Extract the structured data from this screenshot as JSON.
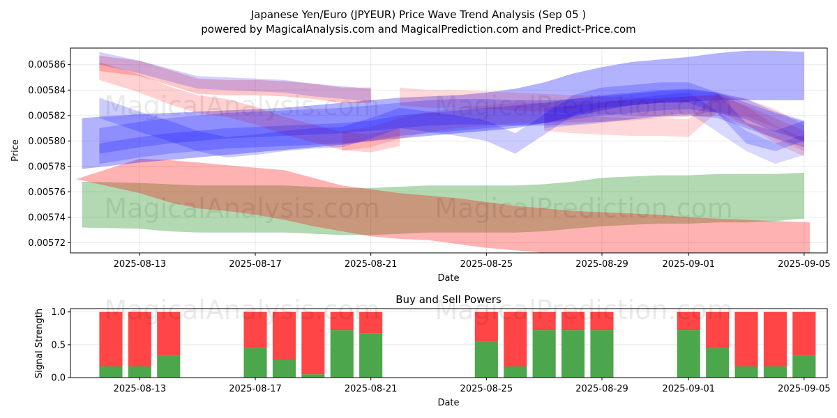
{
  "title_line1": "Japanese Yen/Euro (JPYEUR) Price Wave Trend Analysis (Sep 05 )",
  "title_line2": "powered by MagicalAnalysis.com and MagicalPrediction.com and Predict-Price.com",
  "watermarks": [
    "MagicalAnalysis.com",
    "MagicalPrediction.com"
  ],
  "colors": {
    "red": "#ff0000",
    "green": "#008000",
    "blue": "#0000ff",
    "brown": "#8b6a3a",
    "buy": "#4ca64c",
    "sell": "#ff4545"
  },
  "chart_data": [
    {
      "type": "area",
      "title": "",
      "xlabel": "Date",
      "ylabel": "Price",
      "xlim": [
        -0.4,
        25.8
      ],
      "ylim": [
        0.005712,
        0.005873
      ],
      "x_ticks": [
        {
          "day": 2,
          "label": "2025-08-13"
        },
        {
          "day": 6,
          "label": "2025-08-17"
        },
        {
          "day": 10,
          "label": "2025-08-21"
        },
        {
          "day": 14,
          "label": "2025-08-25"
        },
        {
          "day": 18,
          "label": "2025-08-29"
        },
        {
          "day": 21,
          "label": "2025-09-01"
        },
        {
          "day": 25,
          "label": "2025-09-05"
        }
      ],
      "y_ticks": [
        {
          "value": 0.00572,
          "label": "0.00572"
        },
        {
          "value": 0.00574,
          "label": "0.00574"
        },
        {
          "value": 0.00576,
          "label": "0.00576"
        },
        {
          "value": 0.00578,
          "label": "0.00578"
        },
        {
          "value": 0.0058,
          "label": "0.00580"
        },
        {
          "value": 0.00582,
          "label": "0.00582"
        },
        {
          "value": 0.00584,
          "label": "0.00584"
        },
        {
          "value": 0.00586,
          "label": "0.00586"
        }
      ],
      "bands": [
        {
          "name": "green-forecast",
          "color": "green",
          "opacity": 0.3,
          "x": [
            0,
            2,
            3,
            4,
            5,
            6,
            7,
            8,
            9,
            10,
            11,
            12,
            13,
            14,
            15,
            16,
            17,
            18,
            19,
            20,
            21,
            22,
            23,
            24,
            25
          ],
          "upper": [
            0.005768,
            0.005767,
            0.005766,
            0.005765,
            0.005765,
            0.005765,
            0.005765,
            0.005764,
            0.005763,
            0.005763,
            0.005764,
            0.005765,
            0.005765,
            0.005765,
            0.005765,
            0.005766,
            0.005768,
            0.005771,
            0.005772,
            0.005773,
            0.005773,
            0.005774,
            0.005774,
            0.005774,
            0.005775
          ],
          "lower": [
            0.005732,
            0.005731,
            0.005729,
            0.005728,
            0.005728,
            0.005728,
            0.005728,
            0.005727,
            0.005726,
            0.005726,
            0.005727,
            0.005728,
            0.005728,
            0.005728,
            0.005728,
            0.005729,
            0.005731,
            0.005733,
            0.005734,
            0.005735,
            0.005735,
            0.005736,
            0.005736,
            0.005737,
            0.005739
          ]
        },
        {
          "name": "red-forecast",
          "color": "red",
          "opacity": 0.3,
          "x": [
            -0.2,
            2,
            3,
            4,
            5,
            6,
            7,
            8,
            9,
            10,
            11,
            12,
            13,
            14,
            15,
            16,
            17,
            18,
            19,
            20,
            21,
            22,
            23,
            24,
            25.2
          ],
          "upper": [
            0.00577,
            0.005786,
            0.005785,
            0.005783,
            0.005781,
            0.005779,
            0.005777,
            0.005771,
            0.005765,
            0.005762,
            0.005759,
            0.005757,
            0.005755,
            0.005752,
            0.005749,
            0.005747,
            0.005745,
            0.005744,
            0.005743,
            0.005742,
            0.00574,
            0.005739,
            0.005738,
            0.005737,
            0.005736
          ],
          "lower": [
            0.00577,
            0.005759,
            0.005752,
            0.005747,
            0.005745,
            0.005742,
            0.005738,
            0.005733,
            0.005729,
            0.005725,
            0.005723,
            0.005722,
            0.005719,
            0.005716,
            0.005714,
            0.005712,
            0.005712,
            0.005712,
            0.005712,
            0.005712,
            0.005712,
            0.005712,
            0.005712,
            0.005712,
            0.005712
          ]
        },
        {
          "name": "blue-forecast",
          "color": "blue",
          "opacity": 0.3,
          "x": [
            0,
            2,
            3,
            4,
            5,
            6,
            7,
            8,
            9,
            10,
            11,
            12,
            13,
            14,
            15,
            16,
            17,
            18,
            19,
            20,
            21,
            22,
            23,
            24,
            25
          ],
          "upper": [
            0.005818,
            0.005821,
            0.005822,
            0.005823,
            0.005824,
            0.005825,
            0.005826,
            0.005828,
            0.00583,
            0.005832,
            0.005834,
            0.005835,
            0.005836,
            0.005838,
            0.005841,
            0.005846,
            0.005853,
            0.005858,
            0.005862,
            0.005864,
            0.005866,
            0.005869,
            0.005871,
            0.005871,
            0.00587
          ],
          "lower": [
            0.005778,
            0.005783,
            0.005785,
            0.005787,
            0.005789,
            0.005791,
            0.005793,
            0.005795,
            0.005797,
            0.0058,
            0.005802,
            0.005804,
            0.005806,
            0.005808,
            0.00581,
            0.005814,
            0.005819,
            0.005824,
            0.005828,
            0.00583,
            0.005831,
            0.005832,
            0.005832,
            0.005832,
            0.005832
          ]
        }
      ],
      "waves": [
        {
          "color": "red",
          "opacity": 0.22,
          "x": [
            0.6,
            2,
            3,
            4,
            5,
            6,
            7,
            8,
            9,
            10
          ],
          "center": [
            0.005861,
            0.005857,
            0.00585,
            0.005843,
            0.005842,
            0.005842,
            0.005841,
            0.005839,
            0.005836,
            0.005836
          ],
          "half": 6e-06
        },
        {
          "color": "red",
          "opacity": 0.18,
          "x": [
            0.6,
            2,
            3,
            4,
            5,
            6,
            7,
            8,
            9,
            10,
            11
          ],
          "center": [
            0.005855,
            0.005845,
            0.005836,
            0.005829,
            0.005826,
            0.00582,
            0.005812,
            0.005806,
            0.0058,
            0.005798,
            0.005803
          ],
          "half": 7e-06
        },
        {
          "color": "red",
          "opacity": 0.15,
          "x": [
            9,
            10,
            11,
            12,
            13,
            14,
            15,
            16,
            17,
            18,
            19,
            20,
            21,
            22,
            23,
            24,
            25
          ],
          "center": [
            0.0058,
            0.005803,
            0.00581,
            0.005815,
            0.005818,
            0.00582,
            0.005822,
            0.005822,
            0.005823,
            0.005823,
            0.005824,
            0.005826,
            0.005827,
            0.005828,
            0.00582,
            0.00581,
            0.0058
          ],
          "half": 8e-06
        },
        {
          "color": "red",
          "opacity": 0.15,
          "x": [
            11,
            12,
            13,
            14,
            15,
            16,
            17,
            18,
            19,
            20,
            21,
            22,
            23,
            24,
            25
          ],
          "center": [
            0.005835,
            0.005833,
            0.005833,
            0.005832,
            0.005831,
            0.00583,
            0.005829,
            0.005828,
            0.005827,
            0.005826,
            0.005828,
            0.00583,
            0.005826,
            0.005818,
            0.005805
          ],
          "half": 7e-06
        },
        {
          "color": "red",
          "opacity": 0.15,
          "x": [
            16,
            17,
            18,
            19,
            20,
            21,
            22,
            23,
            24,
            25
          ],
          "center": [
            0.005815,
            0.005813,
            0.005812,
            0.005811,
            0.005811,
            0.00581,
            0.00583,
            0.00582,
            0.005805,
            0.005795
          ],
          "half": 7e-06
        },
        {
          "color": "blue",
          "opacity": 0.18,
          "x": [
            0.6,
            2,
            3,
            4,
            5,
            6,
            7,
            8,
            9,
            10
          ],
          "center": [
            0.005865,
            0.005858,
            0.005852,
            0.005846,
            0.005845,
            0.005844,
            0.005843,
            0.00584,
            0.005838,
            0.005836
          ],
          "half": 5e-06
        },
        {
          "color": "blue",
          "opacity": 0.2,
          "x": [
            0.6,
            2,
            3,
            4,
            5,
            6,
            7,
            8,
            9,
            10,
            11,
            12,
            13,
            14,
            15,
            16,
            17,
            18,
            19,
            20,
            21,
            22,
            23,
            24,
            25
          ],
          "center": [
            0.0058,
            0.005805,
            0.005808,
            0.00581,
            0.005812,
            0.005813,
            0.005814,
            0.005815,
            0.005816,
            0.005818,
            0.00582,
            0.005822,
            0.005823,
            0.005823,
            0.005822,
            0.005822,
            0.005823,
            0.005825,
            0.005827,
            0.005829,
            0.00583,
            0.005828,
            0.00582,
            0.005812,
            0.005805
          ],
          "half": 1e-05
        },
        {
          "color": "blue",
          "opacity": 0.2,
          "x": [
            0.6,
            2,
            3,
            4,
            5,
            6,
            7,
            8,
            9,
            10,
            11,
            12,
            13,
            14,
            15,
            16,
            17,
            18,
            19,
            20,
            21,
            22,
            23,
            24,
            25
          ],
          "center": [
            0.005826,
            0.005815,
            0.005808,
            0.0058,
            0.005795,
            0.005797,
            0.0058,
            0.005802,
            0.005803,
            0.00581,
            0.005818,
            0.005815,
            0.005812,
            0.005808,
            0.005798,
            0.005813,
            0.005828,
            0.005834,
            0.005836,
            0.005838,
            0.005838,
            0.00583,
            0.005806,
            0.0058,
            0.005808
          ],
          "half": 8e-06
        },
        {
          "color": "blue",
          "opacity": 0.2,
          "x": [
            0.6,
            2,
            3,
            4,
            5,
            6,
            7,
            8,
            9,
            10,
            11,
            12,
            13,
            14,
            15,
            16,
            17,
            18,
            19,
            20,
            21,
            22,
            23,
            24,
            25
          ],
          "center": [
            0.00579,
            0.005795,
            0.005798,
            0.0058,
            0.005802,
            0.005803,
            0.005804,
            0.005805,
            0.005806,
            0.005808,
            0.005812,
            0.005814,
            0.005816,
            0.005818,
            0.00582,
            0.005822,
            0.005825,
            0.005828,
            0.00583,
            0.005832,
            0.005833,
            0.00583,
            0.005825,
            0.005815,
            0.005808
          ],
          "half": 8e-06
        },
        {
          "color": "blue",
          "opacity": 0.15,
          "x": [
            16,
            17,
            18,
            19,
            20,
            21,
            22,
            23,
            24,
            25
          ],
          "center": [
            0.005818,
            0.00582,
            0.005822,
            0.005825,
            0.005828,
            0.00583,
            0.005815,
            0.0058,
            0.00579,
            0.005797
          ],
          "half": 8e-06
        }
      ]
    },
    {
      "type": "bar",
      "title": "Buy and Sell Powers",
      "xlabel": "Date",
      "ylabel": "Signal Strength",
      "xlim": [
        -0.4,
        25.8
      ],
      "ylim": [
        0,
        1.05
      ],
      "y_ticks": [
        {
          "value": 0,
          "label": "0.0"
        },
        {
          "value": 0.5,
          "label": "0.5"
        },
        {
          "value": 1,
          "label": "1.0"
        }
      ],
      "x_ticks": [
        {
          "day": 2,
          "label": "2025-08-13"
        },
        {
          "day": 6,
          "label": "2025-08-17"
        },
        {
          "day": 10,
          "label": "2025-08-21"
        },
        {
          "day": 14,
          "label": "2025-08-25"
        },
        {
          "day": 18,
          "label": "2025-08-29"
        },
        {
          "day": 21,
          "label": "2025-09-01"
        },
        {
          "day": 25,
          "label": "2025-09-05"
        }
      ],
      "series": [
        {
          "name": "Buy",
          "color": "buy"
        },
        {
          "name": "Sell",
          "color": "sell"
        }
      ],
      "bars": [
        {
          "day": 1,
          "buy": 0.17
        },
        {
          "day": 2,
          "buy": 0.17
        },
        {
          "day": 3,
          "buy": 0.33
        },
        {
          "day": 6,
          "buy": 0.45
        },
        {
          "day": 7,
          "buy": 0.27
        },
        {
          "day": 8,
          "buy": 0.05
        },
        {
          "day": 9,
          "buy": 0.72
        },
        {
          "day": 10,
          "buy": 0.67
        },
        {
          "day": 14,
          "buy": 0.55
        },
        {
          "day": 15,
          "buy": 0.17
        },
        {
          "day": 16,
          "buy": 0.72
        },
        {
          "day": 17,
          "buy": 0.72
        },
        {
          "day": 18,
          "buy": 0.72
        },
        {
          "day": 21,
          "buy": 0.72
        },
        {
          "day": 22,
          "buy": 0.45
        },
        {
          "day": 23,
          "buy": 0.17
        },
        {
          "day": 24,
          "buy": 0.17
        },
        {
          "day": 25,
          "buy": 0.33
        }
      ]
    }
  ]
}
